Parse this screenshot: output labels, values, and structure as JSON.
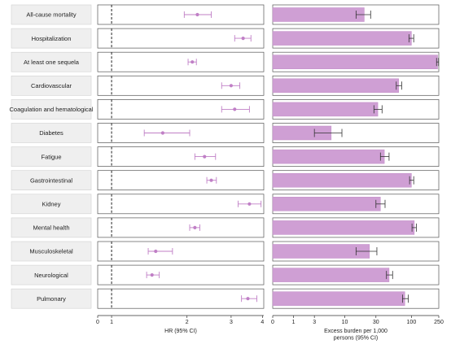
{
  "chart_data": {
    "type": "forest-and-bar",
    "categories": [
      "All-cause mortality",
      "Hospitalization",
      "At least one sequela",
      "Cardiovascular",
      "Coagulation and hematological",
      "Diabetes",
      "Fatigue",
      "Gastrointestinal",
      "Kidney",
      "Mental health",
      "Musculoskeletal",
      "Neurological",
      "Pulmonary"
    ],
    "hr": {
      "xlabel": "HR (95% CI)",
      "scale": "log",
      "xlim": [
        0.88,
        4.05
      ],
      "ticks": [
        "0",
        "1",
        "2",
        "3",
        "4"
      ],
      "tick_values": [
        0.88,
        1,
        2,
        3,
        4
      ],
      "reference_line": 1,
      "values": [
        2.2,
        3.35,
        2.1,
        3.0,
        3.1,
        1.6,
        2.35,
        2.5,
        3.55,
        2.15,
        1.5,
        1.45,
        3.5
      ],
      "ci_low": [
        1.95,
        3.1,
        2.02,
        2.75,
        2.75,
        1.35,
        2.15,
        2.4,
        3.2,
        2.05,
        1.4,
        1.38,
        3.3
      ],
      "ci_high": [
        2.5,
        3.6,
        2.18,
        3.25,
        3.55,
        2.05,
        2.6,
        2.62,
        3.95,
        2.25,
        1.75,
        1.55,
        3.8
      ]
    },
    "burden": {
      "xlabel": "Excess burden per 1,000 persons (95% CI)",
      "scale": "log1p",
      "xlim": [
        0,
        250
      ],
      "ticks": [
        "0",
        "1",
        "3",
        "10",
        "30",
        "100",
        "250"
      ],
      "tick_values": [
        0,
        1,
        3,
        10,
        30,
        100,
        250
      ],
      "values": [
        20,
        100,
        240,
        65,
        32,
        6,
        40,
        100,
        35,
        110,
        24,
        47,
        80
      ],
      "ci_low": [
        15,
        92,
        232,
        60,
        28,
        3,
        35,
        94,
        30,
        102,
        15,
        43,
        74
      ],
      "ci_high": [
        25,
        108,
        248,
        72,
        37,
        9,
        47,
        108,
        41,
        118,
        31,
        53,
        90
      ]
    },
    "colors": {
      "bar": "#cf9fd4",
      "bar_edge": "#c08ac6",
      "point": "#c07fc6",
      "ci": "#c07fc6",
      "label_bg": "#efefef"
    }
  }
}
